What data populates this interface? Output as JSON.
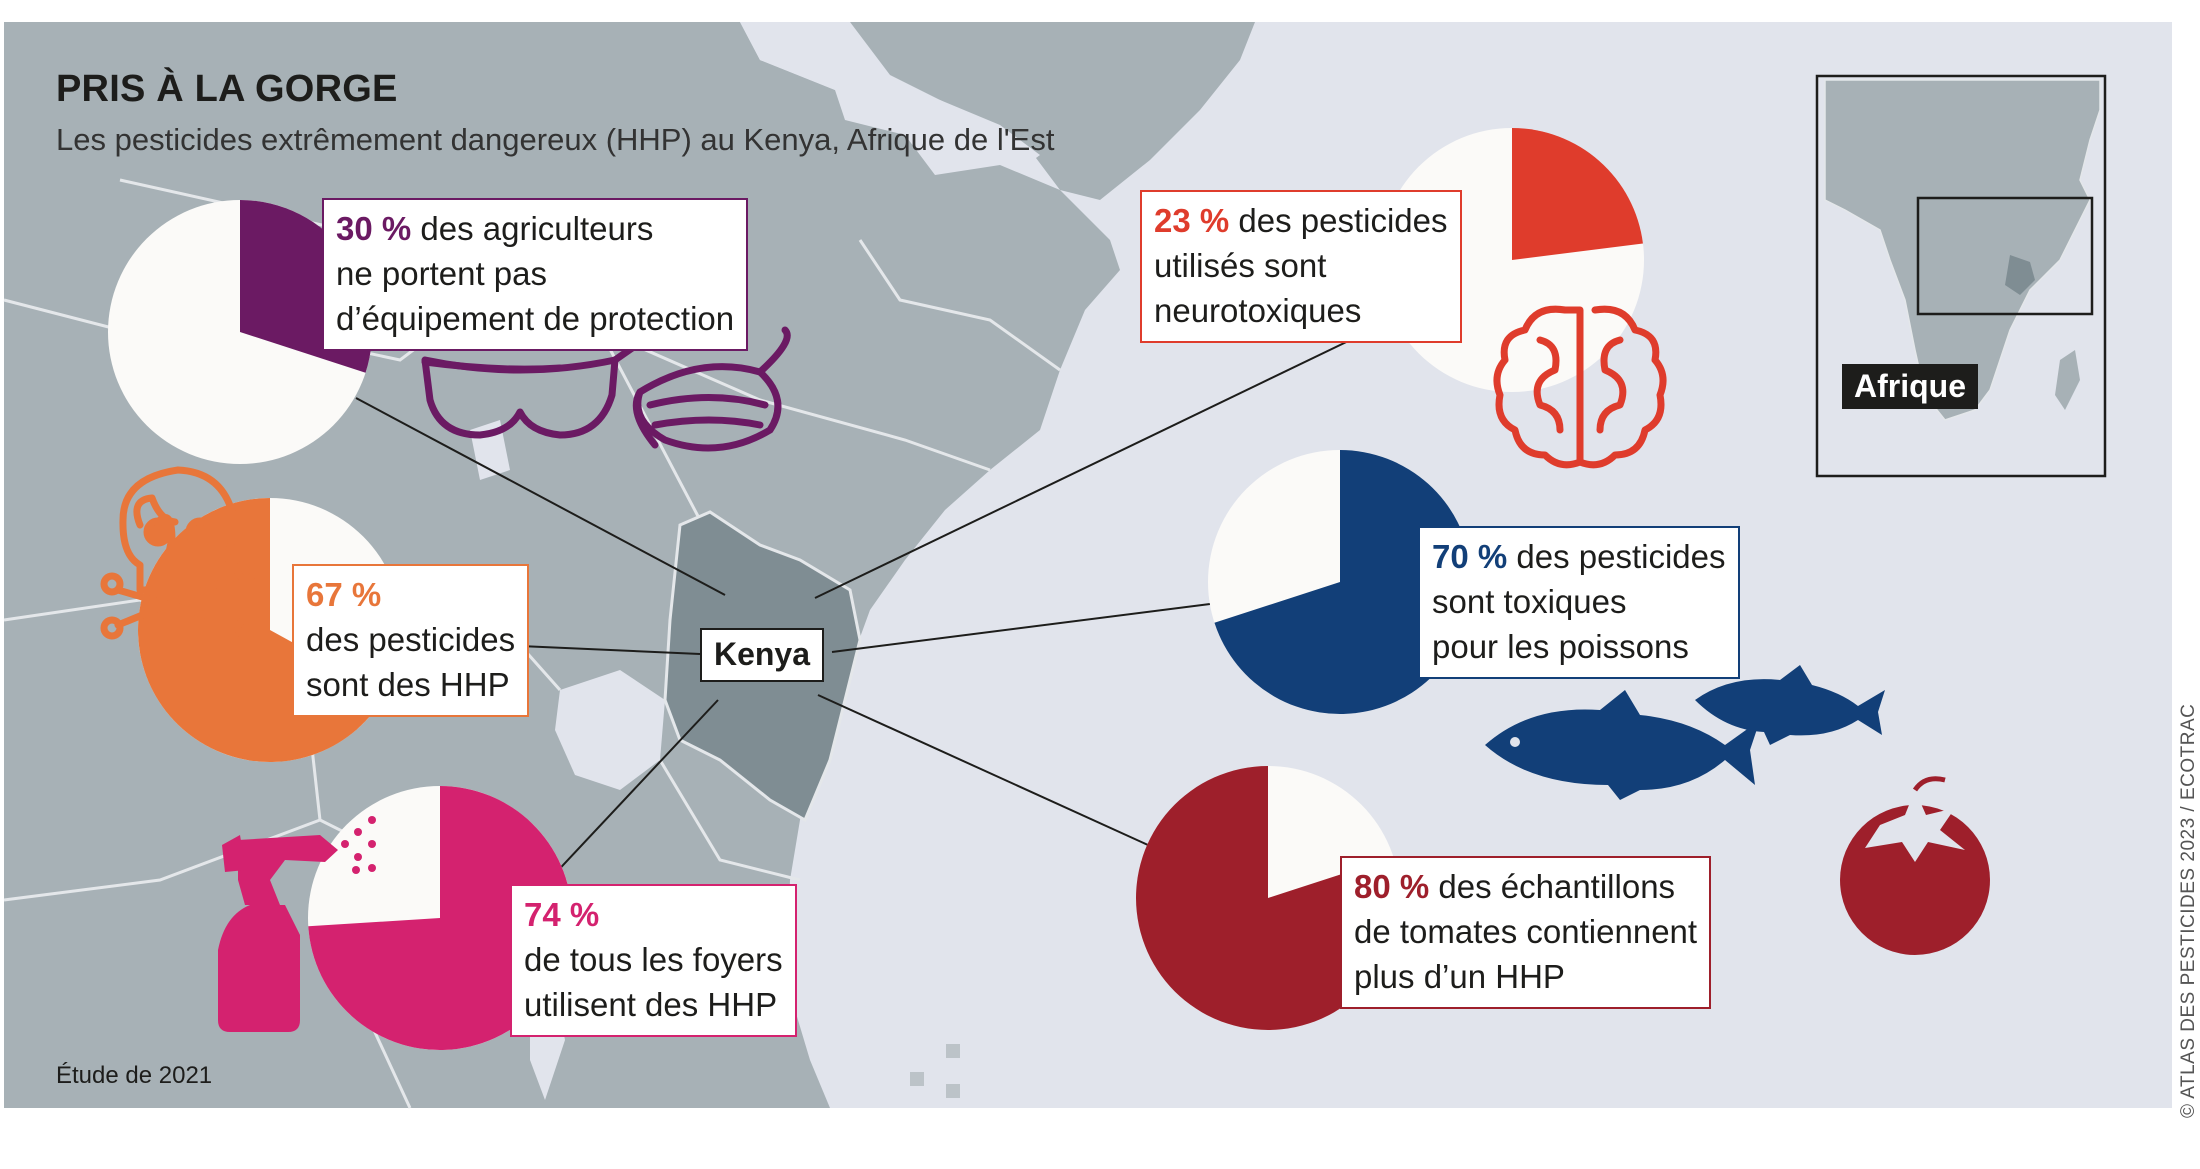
{
  "title": "PRIS À LA GORGE",
  "subtitle": "Les pesticides extrêmement dangereux (HHP) au Kenya, Afrique de l'Est",
  "country_label": "Kenya",
  "inset_label": "Afrique",
  "note": "Étude de 2021",
  "credit": "© ATLAS DES PESTICIDES 2023 / ECOTRAC",
  "colors": {
    "sea": "#e1e4ec",
    "land": "#a7b1b6",
    "kenya": "#7f8d93",
    "purple": "#6b1a63",
    "orange": "#e8763a",
    "magenta": "#d4226f",
    "red": "#df3c2c",
    "navy": "#123f78",
    "darkred": "#9e1f2b"
  },
  "stats": [
    {
      "id": "equipment",
      "value": 30,
      "pct": "30 %",
      "lines": [
        "des agriculteurs",
        "ne portent pas",
        "d’équipement de protection"
      ],
      "color": "purple",
      "icon": "goggles-and-mask-icon"
    },
    {
      "id": "hhp",
      "value": 67,
      "pct": "67 %",
      "lines": [
        "des pesticides",
        "sont des HHP"
      ],
      "color": "orange",
      "icon": "skull-and-crossbones-icon"
    },
    {
      "id": "households",
      "value": 74,
      "pct": "74 %",
      "lines": [
        "de tous les foyers",
        "utilisent des HHP"
      ],
      "color": "magenta",
      "icon": "spray-bottle-icon"
    },
    {
      "id": "neurotoxic",
      "value": 23,
      "pct": "23 %",
      "lines": [
        "des pesticides",
        "utilisés sont",
        "neurotoxiques"
      ],
      "color": "red",
      "icon": "brain-icon"
    },
    {
      "id": "fish",
      "value": 70,
      "pct": "70 %",
      "lines": [
        "des pesticides",
        "sont toxiques",
        "pour les poissons"
      ],
      "color": "navy",
      "icon": "fish-icon"
    },
    {
      "id": "tomatoes",
      "value": 80,
      "pct": "80 %",
      "lines": [
        "des échantillons",
        "de tomates contiennent",
        "plus d’un HHP"
      ],
      "color": "darkred",
      "icon": "tomato-icon"
    }
  ]
}
